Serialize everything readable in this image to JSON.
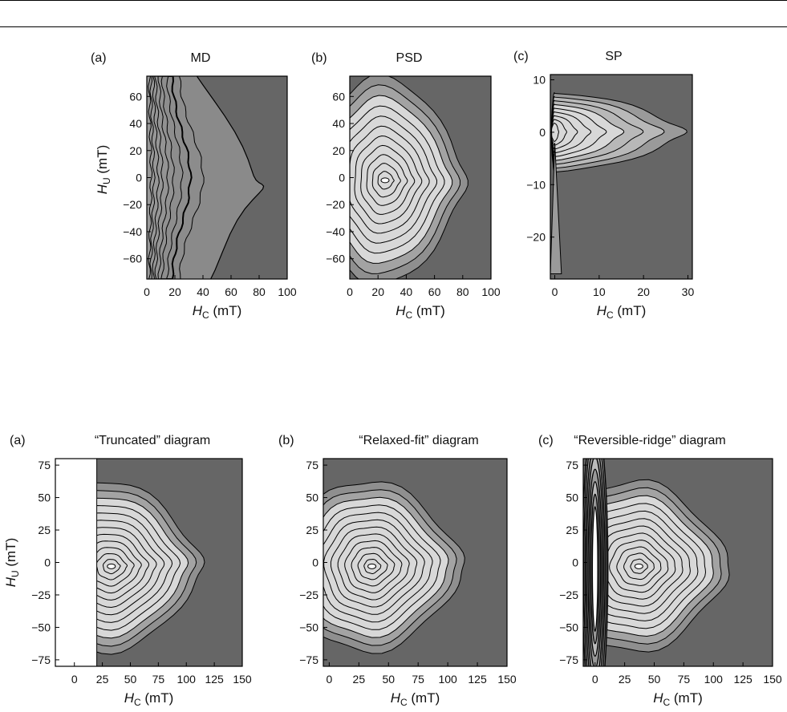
{
  "chart_data": [
    {
      "type": "contour",
      "panel_label": "(a)",
      "title": "MD",
      "xlabel": {
        "base": "H",
        "sub": "C",
        "unit": " (mT)"
      },
      "ylabel": {
        "base": "H",
        "sub": "U",
        "unit": " (mT)"
      },
      "xlim": [
        0,
        100
      ],
      "ylim": [
        -75,
        75
      ],
      "xticks": [
        0,
        20,
        40,
        60,
        80,
        100
      ],
      "yticks": [
        -60,
        -40,
        -20,
        0,
        20,
        40,
        60
      ],
      "peak": {
        "hc": 0,
        "hu": 0
      },
      "contour_levels": 9
    },
    {
      "type": "contour",
      "panel_label": "(b)",
      "title": "PSD",
      "xlabel": {
        "base": "H",
        "sub": "C",
        "unit": " (mT)"
      },
      "ylabel": {
        "base": "",
        "sub": "",
        "unit": ""
      },
      "xlim": [
        0,
        100
      ],
      "ylim": [
        -75,
        75
      ],
      "xticks": [
        0,
        20,
        40,
        60,
        80,
        100
      ],
      "yticks": [
        -60,
        -40,
        -20,
        0,
        20,
        40,
        60
      ],
      "peak": {
        "hc": 25,
        "hu": -2
      },
      "contour_levels": 11
    },
    {
      "type": "contour",
      "panel_label": "(c)",
      "title": "SP",
      "xlabel": {
        "base": "H",
        "sub": "C",
        "unit": " (mT)"
      },
      "ylabel": {
        "base": "",
        "sub": "",
        "unit": ""
      },
      "xlim": [
        -1,
        31
      ],
      "ylim": [
        -28,
        11
      ],
      "xticks": [
        0,
        10,
        20,
        30
      ],
      "yticks": [
        -20,
        -10,
        0,
        10
      ],
      "peak": {
        "hc": 0,
        "hu": 0
      },
      "contour_levels": 9
    },
    {
      "type": "contour",
      "panel_label": "(a)",
      "title": "“Truncated” diagram",
      "xlabel": {
        "base": "H",
        "sub": "C",
        "unit": " (mT)"
      },
      "ylabel": {
        "base": "H",
        "sub": "U",
        "unit": " (mT)"
      },
      "xlim": [
        -17,
        150
      ],
      "ylim": [
        -80,
        80
      ],
      "xticks": [
        0,
        25,
        50,
        75,
        100,
        125,
        150
      ],
      "yticks": [
        -75,
        -50,
        -25,
        0,
        25,
        50,
        75
      ],
      "blank_region_hc_max": 20,
      "peak": {
        "hc": 33,
        "hu": -3
      },
      "contour_levels": 12
    },
    {
      "type": "contour",
      "panel_label": "(b)",
      "title": "“Relaxed-fit” diagram",
      "xlabel": {
        "base": "H",
        "sub": "C",
        "unit": " (mT)"
      },
      "ylabel": {
        "base": "",
        "sub": "",
        "unit": ""
      },
      "xlim": [
        -5,
        150
      ],
      "ylim": [
        -80,
        80
      ],
      "xticks": [
        0,
        25,
        50,
        75,
        100,
        125,
        150
      ],
      "yticks": [
        -75,
        -50,
        -25,
        0,
        25,
        50,
        75
      ],
      "peak": {
        "hc": 36,
        "hu": -3
      },
      "contour_levels": 12
    },
    {
      "type": "contour",
      "panel_label": "(c)",
      "title": "“Reversible-ridge” diagram",
      "xlabel": {
        "base": "H",
        "sub": "C",
        "unit": " (mT)"
      },
      "ylabel": {
        "base": "",
        "sub": "",
        "unit": ""
      },
      "xlim": [
        -10,
        150
      ],
      "ylim": [
        -80,
        80
      ],
      "xticks": [
        0,
        25,
        50,
        75,
        100,
        125,
        150
      ],
      "yticks": [
        -75,
        -50,
        -25,
        0,
        25,
        50,
        75
      ],
      "ridge_hc": 0,
      "peak": {
        "hc": 37,
        "hu": -3
      },
      "contour_levels": 12
    }
  ],
  "colors": {
    "background_fill": "#666666",
    "contour_fill_light": "#d8d8d8",
    "contour_line": "#000000",
    "blank_region": "#ffffff"
  }
}
